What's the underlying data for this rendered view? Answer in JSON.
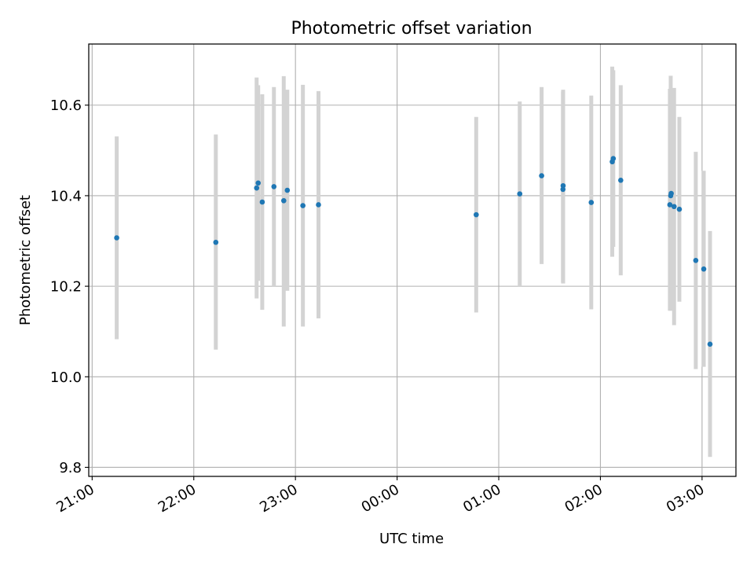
{
  "chart_data": {
    "type": "scatter",
    "title": "Photometric offset variation",
    "xlabel": "UTC time",
    "ylabel": "Photometric offset",
    "x_tick_labels": [
      "21:00",
      "22:00",
      "23:00",
      "00:00",
      "01:00",
      "02:00",
      "03:00"
    ],
    "x_tick_minutes": [
      0,
      60,
      120,
      180,
      240,
      300,
      360
    ],
    "y_ticks": [
      9.8,
      10.0,
      10.2,
      10.4,
      10.6
    ],
    "xlim_minutes": [
      -2,
      380
    ],
    "ylim": [
      9.78,
      10.735
    ],
    "grid": true,
    "series": [
      {
        "marker_color": "#1f77b4",
        "error_color": "#d3d3d3",
        "points": [
          {
            "t": "21:14",
            "m": 14.5,
            "y": 10.307,
            "lo": 10.083,
            "hi": 10.531
          },
          {
            "t": "22:13",
            "m": 73.0,
            "y": 10.297,
            "lo": 10.06,
            "hi": 10.535
          },
          {
            "t": "22:37",
            "m": 97.1,
            "y": 10.417,
            "lo": 10.173,
            "hi": 10.661
          },
          {
            "t": "22:38",
            "m": 98.0,
            "y": 10.428,
            "lo": 10.212,
            "hi": 10.644
          },
          {
            "t": "22:40",
            "m": 100.4,
            "y": 10.386,
            "lo": 10.148,
            "hi": 10.624
          },
          {
            "t": "22:47",
            "m": 107.3,
            "y": 10.42,
            "lo": 10.2,
            "hi": 10.64
          },
          {
            "t": "22:53",
            "m": 113.1,
            "y": 10.389,
            "lo": 10.111,
            "hi": 10.664
          },
          {
            "t": "22:55",
            "m": 115.2,
            "y": 10.412,
            "lo": 10.19,
            "hi": 10.634
          },
          {
            "t": "23:04",
            "m": 124.4,
            "y": 10.378,
            "lo": 10.111,
            "hi": 10.645
          },
          {
            "t": "23:13",
            "m": 133.6,
            "y": 10.38,
            "lo": 10.129,
            "hi": 10.631
          },
          {
            "t": "00:47",
            "m": 226.7,
            "y": 10.358,
            "lo": 10.142,
            "hi": 10.574
          },
          {
            "t": "01:12",
            "m": 252.4,
            "y": 10.404,
            "lo": 10.2,
            "hi": 10.608
          },
          {
            "t": "01:25",
            "m": 265.3,
            "y": 10.444,
            "lo": 10.249,
            "hi": 10.64
          },
          {
            "t": "01:38",
            "m": 277.9,
            "y": 10.414,
            "lo": 10.208,
            "hi": 10.63
          },
          {
            "t": "01:38",
            "m": 278.0,
            "y": 10.422,
            "lo": 10.206,
            "hi": 10.634
          },
          {
            "t": "01:55",
            "m": 294.6,
            "y": 10.385,
            "lo": 10.149,
            "hi": 10.621
          },
          {
            "t": "02:07",
            "m": 307.0,
            "y": 10.475,
            "lo": 10.265,
            "hi": 10.685
          },
          {
            "t": "02:07",
            "m": 307.6,
            "y": 10.482,
            "lo": 10.287,
            "hi": 10.677
          },
          {
            "t": "02:12",
            "m": 312.0,
            "y": 10.434,
            "lo": 10.224,
            "hi": 10.644
          },
          {
            "t": "02:41",
            "m": 341.0,
            "y": 10.38,
            "lo": 10.146,
            "hi": 10.636
          },
          {
            "t": "02:41",
            "m": 341.5,
            "y": 10.4,
            "lo": 10.146,
            "hi": 10.665
          },
          {
            "t": "02:41",
            "m": 341.8,
            "y": 10.405,
            "lo": 10.185,
            "hi": 10.625
          },
          {
            "t": "02:43",
            "m": 343.5,
            "y": 10.376,
            "lo": 10.114,
            "hi": 10.638
          },
          {
            "t": "02:46",
            "m": 346.6,
            "y": 10.37,
            "lo": 10.166,
            "hi": 10.574
          },
          {
            "t": "02:56",
            "m": 356.3,
            "y": 10.257,
            "lo": 10.017,
            "hi": 10.497
          },
          {
            "t": "03:01",
            "m": 361.0,
            "y": 10.238,
            "lo": 10.022,
            "hi": 10.455
          },
          {
            "t": "03:05",
            "m": 364.7,
            "y": 10.072,
            "lo": 9.823,
            "hi": 10.322
          }
        ]
      }
    ]
  }
}
